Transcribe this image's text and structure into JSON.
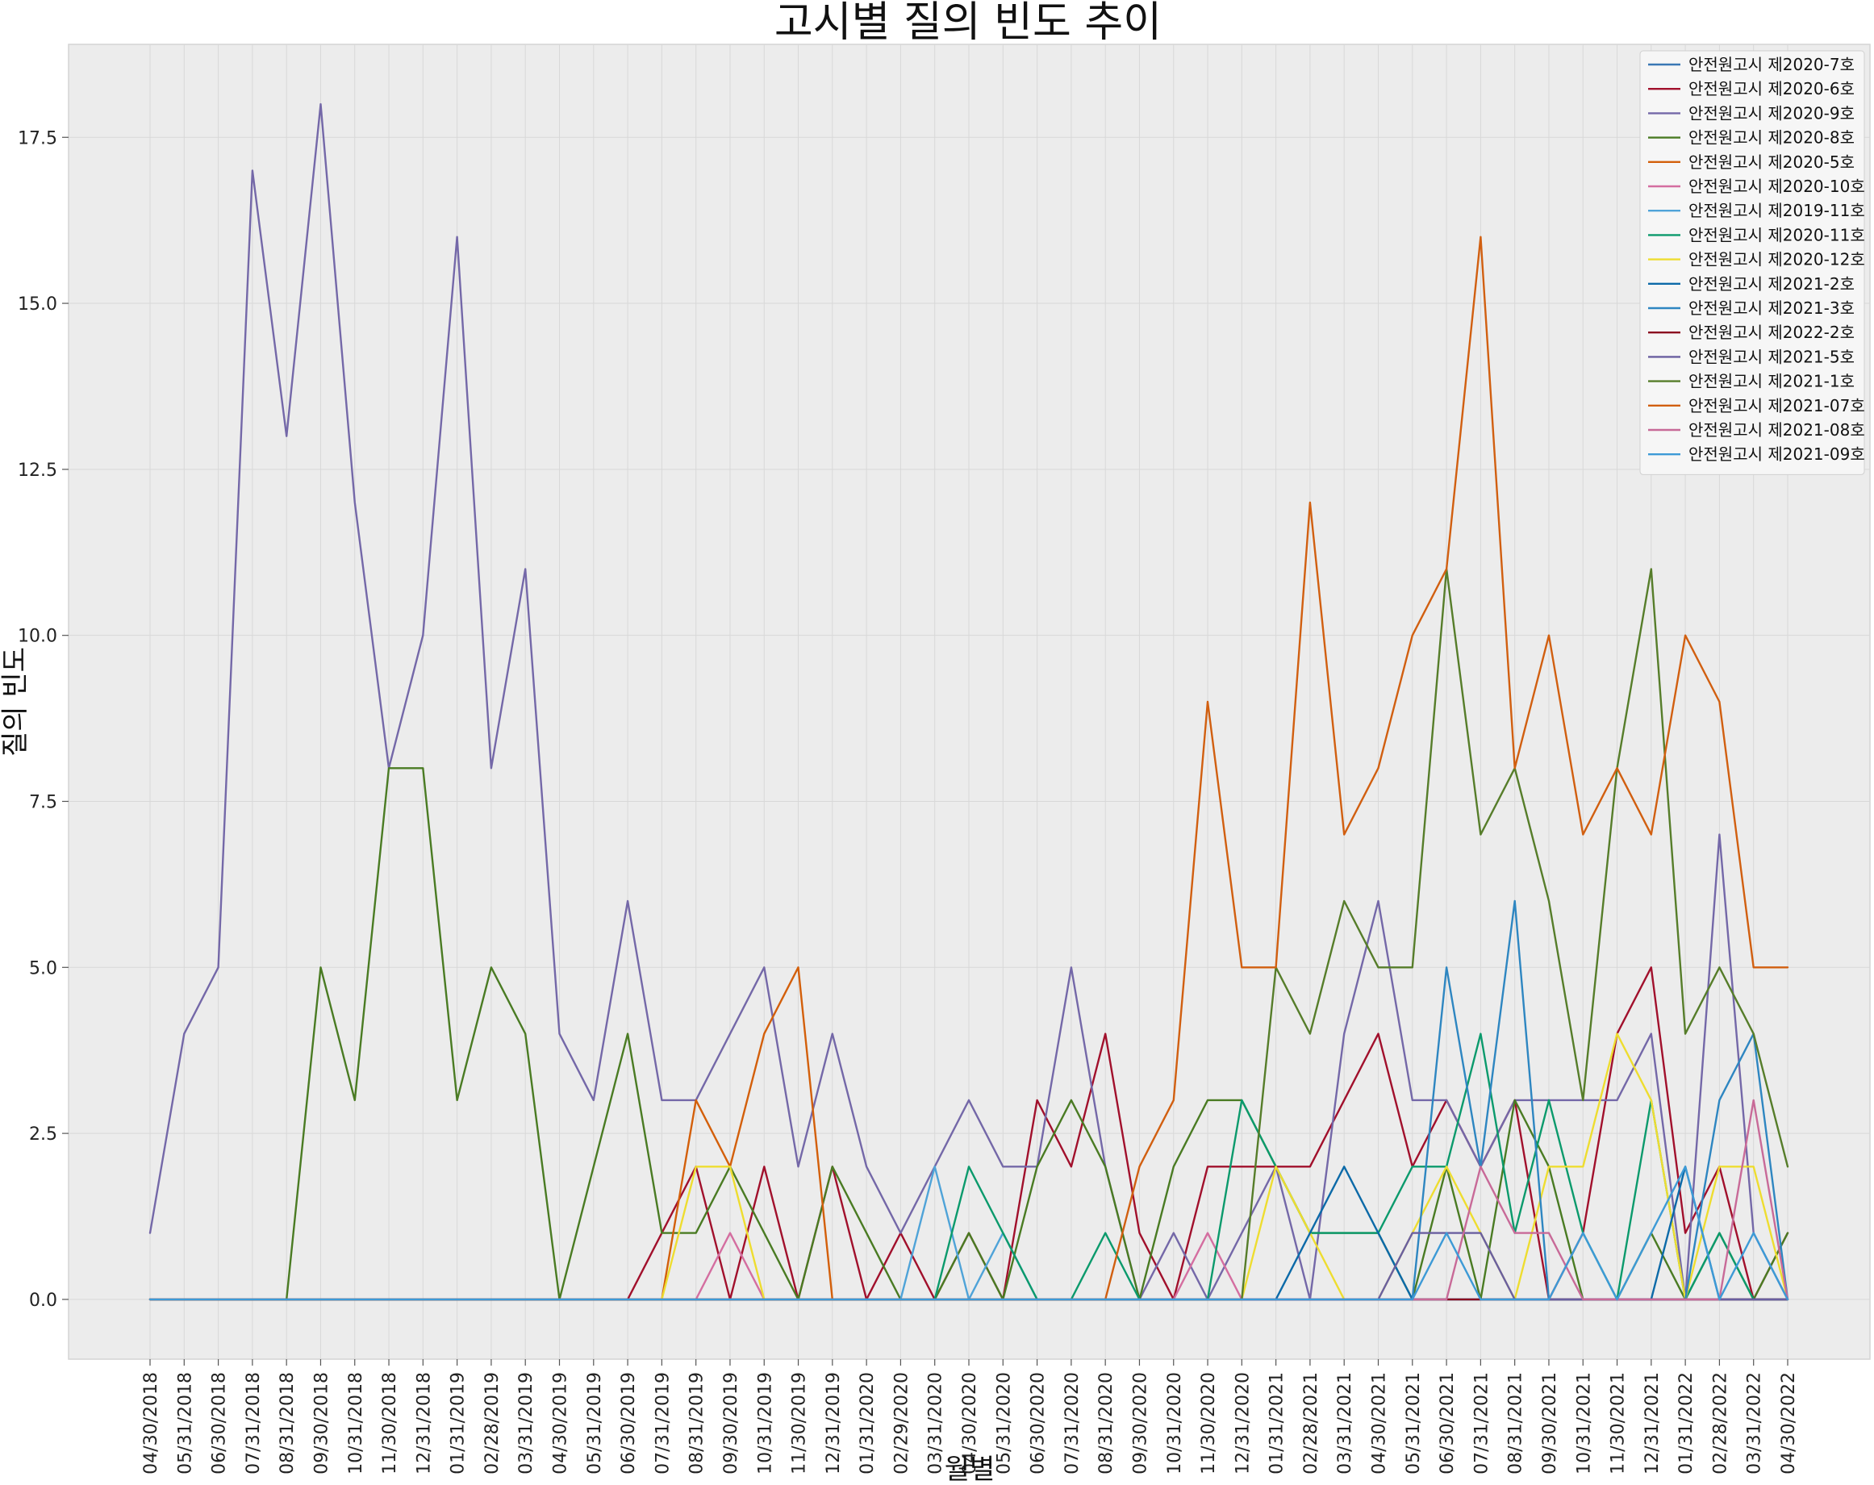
{
  "chart_data": {
    "type": "line",
    "title": "고시별 질의 빈도 추이",
    "xlabel": "월별",
    "ylabel": "질의 빈도",
    "ylim": [
      -0.9,
      18.9
    ],
    "yticks": [
      0.0,
      2.5,
      5.0,
      7.5,
      10.0,
      12.5,
      15.0,
      17.5
    ],
    "grid": true,
    "legend_position": "top-right",
    "x": [
      "04/30/2018",
      "05/31/2018",
      "06/30/2018",
      "07/31/2018",
      "08/31/2018",
      "09/30/2018",
      "10/31/2018",
      "11/30/2018",
      "12/31/2018",
      "01/31/2019",
      "02/28/2019",
      "03/31/2019",
      "04/30/2019",
      "05/31/2019",
      "06/30/2019",
      "07/31/2019",
      "08/31/2019",
      "09/30/2019",
      "10/31/2019",
      "11/30/2019",
      "12/31/2019",
      "01/31/2020",
      "02/29/2020",
      "03/31/2020",
      "04/30/2020",
      "05/31/2020",
      "06/30/2020",
      "07/31/2020",
      "08/31/2020",
      "09/30/2020",
      "10/31/2020",
      "11/30/2020",
      "12/31/2020",
      "01/31/2021",
      "02/28/2021",
      "03/31/2021",
      "04/30/2021",
      "05/31/2021",
      "06/30/2021",
      "07/31/2021",
      "08/31/2021",
      "09/30/2021",
      "10/31/2021",
      "11/30/2021",
      "12/31/2021",
      "01/31/2022",
      "02/28/2022",
      "03/31/2022",
      "04/30/2022"
    ],
    "series": [
      {
        "name": "안전원고시 제2020-7호",
        "color": "#3a78b4",
        "values": [
          0,
          0,
          0,
          0,
          0,
          0,
          0,
          0,
          0,
          0,
          0,
          0,
          0,
          0,
          0,
          0,
          0,
          0,
          0,
          0,
          0,
          0,
          0,
          0,
          0,
          0,
          0,
          0,
          0,
          0,
          0,
          0,
          0,
          0,
          0,
          0,
          0,
          0,
          0,
          0,
          0,
          0,
          0,
          0,
          0,
          0,
          0,
          0,
          0
        ]
      },
      {
        "name": "안전원고시 제2020-6호",
        "color": "#a1102c",
        "values": [
          0,
          0,
          0,
          0,
          0,
          0,
          0,
          0,
          0,
          0,
          0,
          0,
          0,
          0,
          0,
          1,
          2,
          0,
          2,
          0,
          2,
          0,
          1,
          0,
          1,
          0,
          3,
          2,
          4,
          1,
          0,
          2,
          2,
          2,
          2,
          3,
          4,
          2,
          3,
          2,
          3,
          0,
          1,
          4,
          5,
          1,
          2,
          0,
          1
        ]
      },
      {
        "name": "안전원고시 제2020-9호",
        "color": "#7468a8",
        "values": [
          1,
          4,
          5,
          17,
          13,
          18,
          12,
          8,
          10,
          16,
          8,
          11,
          4,
          3,
          6,
          3,
          3,
          4,
          5,
          2,
          4,
          2,
          1,
          2,
          3,
          2,
          2,
          5,
          2,
          0,
          1,
          0,
          1,
          2,
          0,
          4,
          6,
          3,
          3,
          2,
          3,
          3,
          3,
          3,
          4,
          0,
          7,
          1,
          0
        ]
      },
      {
        "name": "안전원고시 제2020-8호",
        "color": "#4a7b23",
        "values": [
          0,
          0,
          0,
          0,
          0,
          5,
          3,
          8,
          8,
          3,
          5,
          4,
          0,
          2,
          4,
          1,
          1,
          2,
          1,
          0,
          2,
          1,
          0,
          0,
          1,
          0,
          2,
          3,
          2,
          0,
          2,
          3,
          3,
          2,
          1,
          1,
          1,
          0,
          2,
          0,
          3,
          2,
          0,
          0,
          1,
          0,
          1,
          0,
          1
        ]
      },
      {
        "name": "안전원고시 제2020-5호",
        "color": "#d35f0a",
        "values": [
          0,
          0,
          0,
          0,
          0,
          0,
          0,
          0,
          0,
          0,
          0,
          0,
          0,
          0,
          0,
          0,
          3,
          2,
          4,
          5,
          0,
          0,
          0,
          0,
          0,
          0,
          0,
          0,
          0,
          0,
          0,
          0,
          0,
          0,
          0,
          0,
          0,
          0,
          0,
          0,
          0,
          0,
          0,
          0,
          0,
          0,
          0,
          0,
          0
        ]
      },
      {
        "name": "안전원고시 제2020-10호",
        "color": "#d46ea0",
        "values": [
          0,
          0,
          0,
          0,
          0,
          0,
          0,
          0,
          0,
          0,
          0,
          0,
          0,
          0,
          0,
          0,
          0,
          1,
          0,
          0,
          0,
          0,
          0,
          0,
          0,
          0,
          0,
          0,
          0,
          0,
          0,
          1,
          0,
          0,
          0,
          0,
          0,
          0,
          0,
          0,
          0,
          0,
          0,
          0,
          0,
          0,
          0,
          0,
          0
        ]
      },
      {
        "name": "안전원고시 제2019-11호",
        "color": "#4fa3d8",
        "values": [
          0,
          0,
          0,
          0,
          0,
          0,
          0,
          0,
          0,
          0,
          0,
          0,
          0,
          0,
          0,
          0,
          0,
          0,
          0,
          0,
          0,
          0,
          0,
          2,
          0,
          1,
          0,
          0,
          0,
          0,
          0,
          0,
          0,
          0,
          0,
          0,
          0,
          0,
          0,
          0,
          0,
          0,
          0,
          0,
          0,
          0,
          0,
          0,
          0
        ]
      },
      {
        "name": "안전원고시 제2020-11호",
        "color": "#0b9a6c",
        "values": [
          0,
          0,
          0,
          0,
          0,
          0,
          0,
          0,
          0,
          0,
          0,
          0,
          0,
          0,
          0,
          0,
          0,
          0,
          0,
          0,
          0,
          0,
          0,
          0,
          2,
          1,
          0,
          0,
          1,
          0,
          0,
          0,
          3,
          2,
          1,
          1,
          1,
          2,
          2,
          4,
          1,
          3,
          1,
          0,
          3,
          0,
          1,
          0,
          0
        ]
      },
      {
        "name": "안전원고시 제2020-12호",
        "color": "#eedd30",
        "values": [
          0,
          0,
          0,
          0,
          0,
          0,
          0,
          0,
          0,
          0,
          0,
          0,
          0,
          0,
          0,
          0,
          2,
          2,
          0,
          0,
          0,
          0,
          0,
          0,
          0,
          0,
          0,
          0,
          0,
          0,
          0,
          0,
          0,
          2,
          1,
          0,
          0,
          1,
          2,
          1,
          0,
          2,
          2,
          4,
          3,
          0,
          2,
          2,
          0
        ]
      },
      {
        "name": "안전원고시 제2021-2호",
        "color": "#0c6aa8",
        "values": [
          0,
          0,
          0,
          0,
          0,
          0,
          0,
          0,
          0,
          0,
          0,
          0,
          0,
          0,
          0,
          0,
          0,
          0,
          0,
          0,
          0,
          0,
          0,
          0,
          0,
          0,
          0,
          0,
          0,
          0,
          0,
          0,
          0,
          0,
          1,
          2,
          1,
          0,
          0,
          0,
          0,
          0,
          0,
          0,
          0,
          2,
          0,
          0,
          0
        ]
      },
      {
        "name": "안전원고시 제2021-3호",
        "color": "#2e86c1",
        "values": [
          0,
          0,
          0,
          0,
          0,
          0,
          0,
          0,
          0,
          0,
          0,
          0,
          0,
          0,
          0,
          0,
          0,
          0,
          0,
          0,
          0,
          0,
          0,
          0,
          0,
          0,
          0,
          0,
          0,
          0,
          0,
          0,
          0,
          0,
          0,
          0,
          0,
          0,
          5,
          2,
          6,
          0,
          0,
          0,
          0,
          0,
          3,
          4,
          0
        ]
      },
      {
        "name": "안전원고시 제2022-2호",
        "color": "#8b0a1f",
        "values": [
          0,
          0,
          0,
          0,
          0,
          0,
          0,
          0,
          0,
          0,
          0,
          0,
          0,
          0,
          0,
          0,
          0,
          0,
          0,
          0,
          0,
          0,
          0,
          0,
          0,
          0,
          0,
          0,
          0,
          0,
          0,
          0,
          0,
          0,
          0,
          0,
          0,
          0,
          0,
          0,
          0,
          0,
          0,
          0,
          0,
          0,
          0,
          0,
          0
        ]
      },
      {
        "name": "안전원고시 제2021-5호",
        "color": "#6a5fa0",
        "values": [
          0,
          0,
          0,
          0,
          0,
          0,
          0,
          0,
          0,
          0,
          0,
          0,
          0,
          0,
          0,
          0,
          0,
          0,
          0,
          0,
          0,
          0,
          0,
          0,
          0,
          0,
          0,
          0,
          0,
          0,
          0,
          0,
          0,
          0,
          0,
          0,
          0,
          1,
          1,
          1,
          0,
          0,
          0,
          0,
          0,
          0,
          0,
          0,
          0
        ]
      },
      {
        "name": "안전원고시 제2021-1호",
        "color": "#567d2a",
        "values": [
          0,
          0,
          0,
          0,
          0,
          0,
          0,
          0,
          0,
          0,
          0,
          0,
          0,
          0,
          0,
          0,
          0,
          0,
          0,
          0,
          0,
          0,
          0,
          0,
          0,
          0,
          0,
          0,
          0,
          0,
          0,
          0,
          0,
          5,
          4,
          6,
          5,
          5,
          11,
          7,
          8,
          6,
          3,
          8,
          11,
          4,
          5,
          4,
          2
        ]
      },
      {
        "name": "안전원고시 제2021-07호",
        "color": "#d15f10",
        "values": [
          0,
          0,
          0,
          0,
          0,
          0,
          0,
          0,
          0,
          0,
          0,
          0,
          0,
          0,
          0,
          0,
          0,
          0,
          0,
          0,
          0,
          0,
          0,
          0,
          0,
          0,
          0,
          0,
          0,
          2,
          3,
          9,
          5,
          5,
          12,
          7,
          8,
          10,
          11,
          16,
          8,
          10,
          7,
          8,
          7,
          10,
          9,
          5,
          5
        ]
      },
      {
        "name": "안전원고시 제2021-08호",
        "color": "#c86a98",
        "values": [
          0,
          0,
          0,
          0,
          0,
          0,
          0,
          0,
          0,
          0,
          0,
          0,
          0,
          0,
          0,
          0,
          0,
          0,
          0,
          0,
          0,
          0,
          0,
          0,
          0,
          0,
          0,
          0,
          0,
          0,
          0,
          0,
          0,
          0,
          0,
          0,
          0,
          0,
          0,
          2,
          1,
          1,
          0,
          0,
          0,
          0,
          0,
          3,
          0
        ]
      },
      {
        "name": "안전원고시 제2021-09호",
        "color": "#3d9ad6",
        "values": [
          0,
          0,
          0,
          0,
          0,
          0,
          0,
          0,
          0,
          0,
          0,
          0,
          0,
          0,
          0,
          0,
          0,
          0,
          0,
          0,
          0,
          0,
          0,
          0,
          0,
          0,
          0,
          0,
          0,
          0,
          0,
          0,
          0,
          0,
          0,
          0,
          0,
          0,
          1,
          0,
          0,
          0,
          1,
          0,
          1,
          2,
          0,
          1,
          0
        ]
      }
    ]
  }
}
